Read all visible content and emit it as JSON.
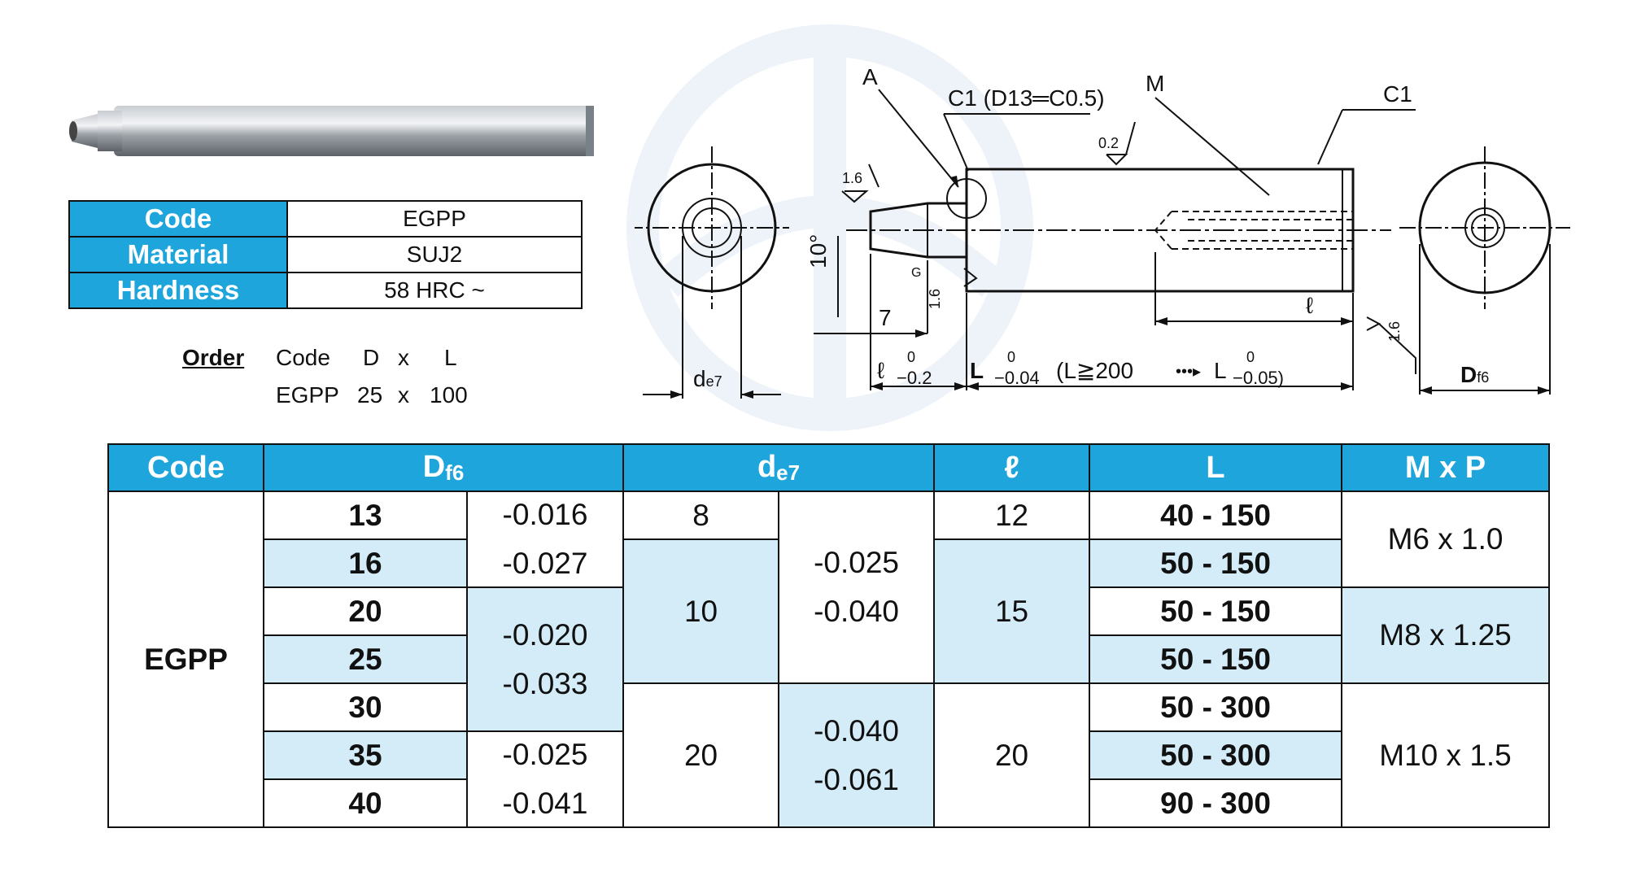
{
  "spec": {
    "rows": [
      {
        "label": "Code",
        "value": "EGPP"
      },
      {
        "label": "Material",
        "value": "SUJ2"
      },
      {
        "label": "Hardness",
        "value": "58 HRC ~"
      }
    ]
  },
  "order": {
    "label": "Order",
    "headers": [
      "Code",
      "D",
      "x",
      "L"
    ],
    "example": [
      "EGPP",
      "25",
      "x",
      "100"
    ]
  },
  "drawing": {
    "label_A": "A",
    "label_C1_note": "C1 (D13═C0.5)",
    "label_M": "M",
    "label_C1": "C1",
    "rough_02": "0.2",
    "rough_16a": "1.6",
    "rough_G": "G",
    "rough_16b": "1.6",
    "rough_16c": "1.6",
    "angle": "10°",
    "dim_7": "7",
    "dim_l": "ℓ",
    "dim_l_tol": "ℓ",
    "tol_0": "0",
    "tol_02": "−0.2",
    "dim_L": "L",
    "tol_004": "−0.04",
    "cond": "(L≧200",
    "arrow": "•••▸",
    "dim_L2": "L",
    "tol_005": "−0.05)",
    "de7": "d",
    "de7_sub": "e7",
    "Df6": "D",
    "Df6_sub": "f6"
  },
  "table": {
    "headers": {
      "code": "Code",
      "df6": "D",
      "df6_sub": "f6",
      "de7": "d",
      "de7_sub": "e7",
      "l": "ℓ",
      "L": "L",
      "mp": "M x P"
    },
    "code": "EGPP",
    "D": [
      "13",
      "16",
      "20",
      "25",
      "30",
      "35",
      "40"
    ],
    "D_tol": [
      [
        "-0.016",
        "-0.027"
      ],
      [
        "-0.020",
        "-0.033"
      ],
      [
        "-0.025",
        "-0.041"
      ]
    ],
    "d": [
      "8",
      "10",
      "20"
    ],
    "d_tol": [
      [
        "-0.025",
        "-0.040"
      ],
      [
        "-0.040",
        "-0.061"
      ]
    ],
    "l": [
      "12",
      "15",
      "20"
    ],
    "L": [
      "40 - 150",
      "50 - 150",
      "50 - 150",
      "50 - 150",
      "50 - 300",
      "50 - 300",
      "90 - 300"
    ],
    "mp": [
      "M6 x 1.0",
      "M8 x 1.25",
      "M10 x 1.5"
    ]
  }
}
